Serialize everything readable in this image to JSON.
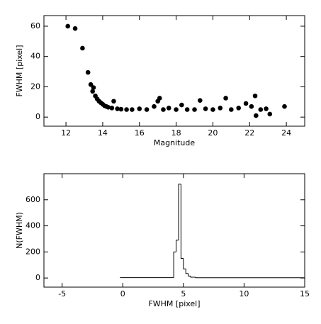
{
  "chart_data": [
    {
      "type": "scatter",
      "x_label": "Magnitude",
      "y_label": "FWHM [pixel]",
      "color": "#000000",
      "x": [
        12.1,
        12.5,
        12.9,
        13.2,
        13.35,
        13.45,
        13.5,
        13.6,
        13.7,
        13.8,
        13.9,
        14.0,
        14.1,
        14.2,
        14.3,
        14.5,
        14.6,
        14.8,
        15.0,
        15.3,
        15.6,
        16.0,
        16.4,
        16.8,
        17.0,
        17.1,
        17.3,
        17.6,
        18.0,
        18.3,
        18.6,
        19.0,
        19.3,
        19.6,
        20.0,
        20.4,
        20.7,
        21.0,
        21.4,
        21.8,
        22.1,
        22.3,
        22.35,
        22.6,
        22.9,
        23.1,
        23.9
      ],
      "values": [
        60,
        58.5,
        45.5,
        29.5,
        21.5,
        17,
        19.5,
        14,
        12,
        10.5,
        9.5,
        8.5,
        7.5,
        7,
        6.5,
        6,
        10.5,
        5.5,
        5.2,
        5,
        5,
        5.5,
        5,
        7,
        10.5,
        12.5,
        5,
        6,
        5,
        8,
        5,
        5,
        11,
        5.5,
        5,
        6,
        12.5,
        5,
        6,
        9,
        7,
        14,
        1,
        5,
        5.5,
        2,
        7
      ],
      "xlim": [
        10.8,
        25
      ],
      "ylim": [
        -6,
        67
      ],
      "xticks": [
        12,
        14,
        16,
        18,
        20,
        22,
        24
      ],
      "yticks": [
        0,
        20,
        40,
        60
      ]
    },
    {
      "type": "histogram",
      "x_label": "FWHM [pixel]",
      "y_label": "N(FWHM)",
      "color": "#000000",
      "bins": [
        -0.2,
        4.2,
        4.4,
        4.6,
        4.8,
        5.0,
        5.2,
        5.4,
        5.6,
        6.0,
        15
      ],
      "values": [
        3,
        200,
        290,
        720,
        150,
        70,
        35,
        15,
        6,
        2
      ],
      "xlim": [
        -6.5,
        15
      ],
      "ylim": [
        -70,
        800
      ],
      "xticks": [
        -5,
        0,
        5,
        10,
        15
      ],
      "yticks": [
        0,
        200,
        400,
        600
      ]
    }
  ]
}
